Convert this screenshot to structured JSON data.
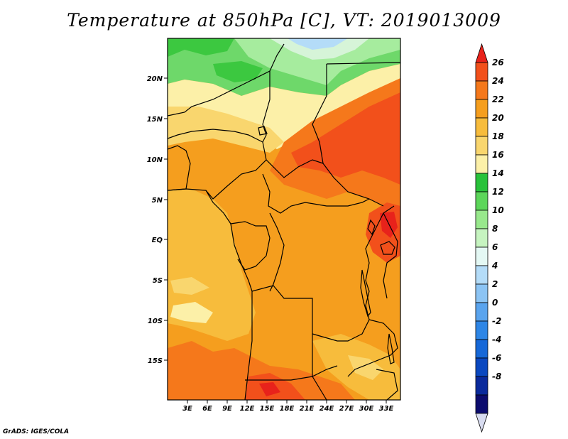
{
  "title": "Temperature at 850hPa [C], VT: 2019013009",
  "footer": "GrADS: IGES/COLA",
  "lat_labels": [
    "20N",
    "15N",
    "10N",
    "5N",
    "EQ",
    "5S",
    "10S",
    "15S"
  ],
  "lon_labels": [
    "3E",
    "6E",
    "9E",
    "12E",
    "15E",
    "18E",
    "21E",
    "24E",
    "27E",
    "30E",
    "33E"
  ],
  "colorbar": {
    "labels": [
      "26",
      "24",
      "22",
      "20",
      "18",
      "16",
      "14",
      "12",
      "10",
      "8",
      "6",
      "4",
      "2",
      "0",
      "-2",
      "-4",
      "-6",
      "-8"
    ],
    "colors": [
      "#e8221b",
      "#f2501b",
      "#f5781b",
      "#f59e1e",
      "#f7bc3c",
      "#f9d66e",
      "#fcf0a8",
      "#28c23a",
      "#5cd65a",
      "#98e88c",
      "#c6f4c0",
      "#e4f8f4",
      "#b4dcf8",
      "#8cc4f4",
      "#5aa4ee",
      "#2e86e6",
      "#1668d8",
      "#0a48c0",
      "#0a2a9c",
      "#0c0c6e",
      "#d8dcf0"
    ]
  },
  "map_colors": {
    "green_dark": "#3cc840",
    "green_mid": "#6ed86a",
    "green_light": "#a6ec9e",
    "mint": "#d6f4d8",
    "blue_light": "#b4dcf8",
    "yellow_light": "#fcf0a8",
    "yellow": "#f9d66e",
    "orange_light": "#f7bc3c",
    "orange": "#f59e1e",
    "orange_dark": "#f5781b",
    "red_orange": "#f2501b",
    "red": "#e8221b"
  }
}
